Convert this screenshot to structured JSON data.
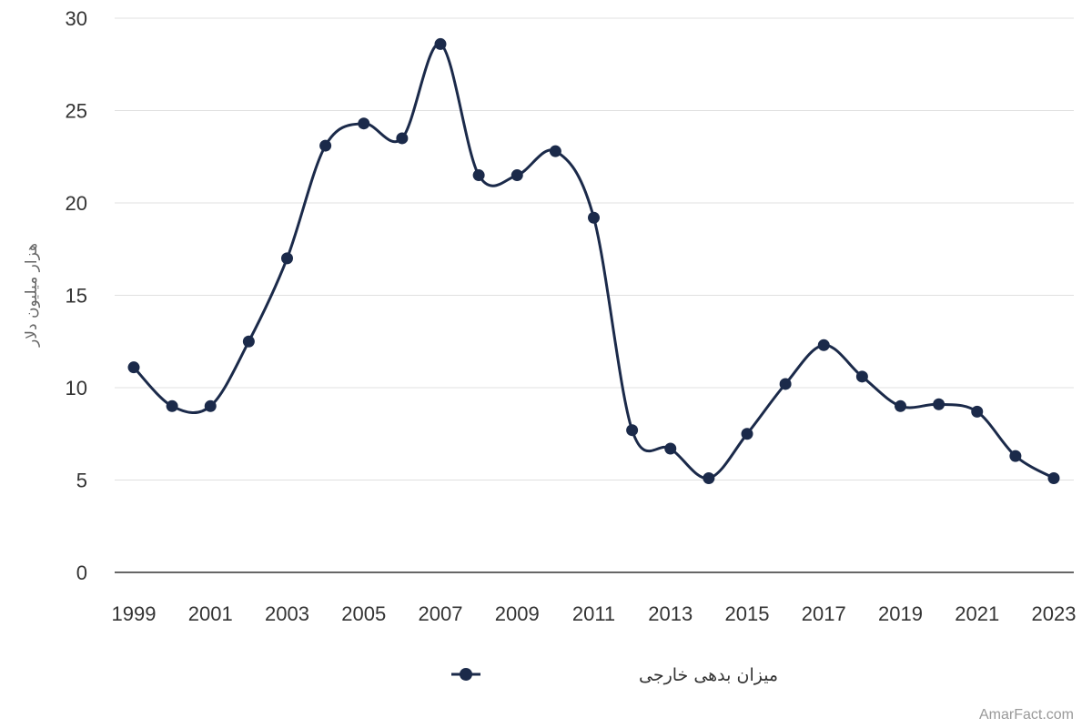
{
  "chart_data": {
    "type": "line",
    "title": "",
    "xlabel": "",
    "ylabel": "هزار میلیون دلار",
    "x": [
      1999,
      2000,
      2001,
      2002,
      2003,
      2004,
      2005,
      2006,
      2007,
      2008,
      2009,
      2010,
      2011,
      2012,
      2013,
      2014,
      2015,
      2016,
      2017,
      2018,
      2019,
      2020,
      2021,
      2022,
      2023
    ],
    "x_tick_labels": [
      "1999",
      "2001",
      "2003",
      "2005",
      "2007",
      "2009",
      "2011",
      "2013",
      "2015",
      "2017",
      "2019",
      "2021",
      "2023"
    ],
    "y_tick_labels": [
      "0",
      "5",
      "10",
      "15",
      "20",
      "25",
      "30"
    ],
    "ylim": [
      0,
      30
    ],
    "grid": true,
    "legend_position": "bottom-center",
    "series": [
      {
        "name": "میزان بدهی خارجی",
        "color": "#1b2a4a",
        "values": [
          11.1,
          9.0,
          9.0,
          12.5,
          17.0,
          23.1,
          24.3,
          23.5,
          28.6,
          21.5,
          21.5,
          22.8,
          19.2,
          7.7,
          6.7,
          5.1,
          7.5,
          10.2,
          12.3,
          10.6,
          9.0,
          9.1,
          8.7,
          6.3,
          5.1
        ]
      }
    ]
  },
  "credit": "AmarFact.com"
}
